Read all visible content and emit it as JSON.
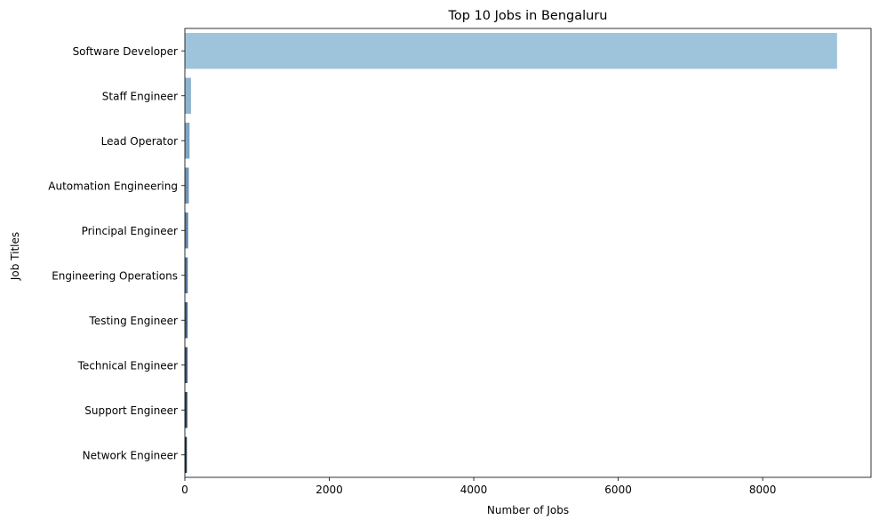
{
  "chart_data": {
    "type": "bar",
    "orientation": "horizontal",
    "title": "Top 10 Jobs in Bengaluru",
    "xlabel": "Number of Jobs",
    "ylabel": "Job Titles",
    "xlim": [
      0,
      9500
    ],
    "xticks": [
      0,
      2000,
      4000,
      6000,
      8000
    ],
    "grid": false,
    "categories": [
      "Software Developer",
      "Staff Engineer",
      "Lead Operator",
      "Automation Engineering",
      "Principal Engineer",
      "Engineering Operations",
      "Testing Engineer",
      "Technical Engineer",
      "Support Engineer",
      "Network Engineer"
    ],
    "values": [
      9030,
      85,
      65,
      55,
      45,
      40,
      38,
      36,
      34,
      28
    ],
    "colors": [
      "#9ec4db",
      "#8fb3cf",
      "#7ea5c3",
      "#6f94b5",
      "#6184a6",
      "#557595",
      "#4a6582",
      "#3f566f",
      "#34475c",
      "#2a3a4b"
    ]
  }
}
